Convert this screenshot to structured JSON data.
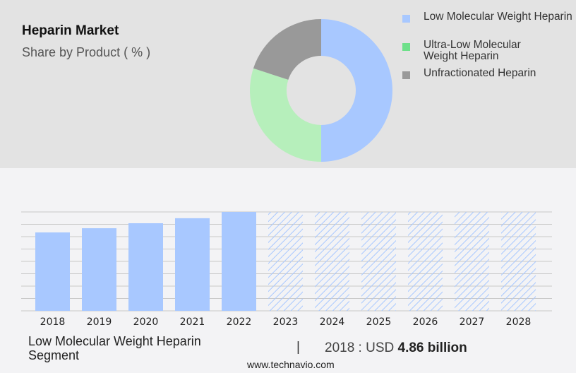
{
  "title": "Heparin Market",
  "subtitle": "Share by Product ( % )",
  "chart_data": [
    {
      "type": "pie",
      "donut": true,
      "categories": [
        "Low Molecular Weight Heparin",
        "Ultra-Low Molecular Weight Heparin",
        "Unfractionated Heparin"
      ],
      "values": [
        50,
        30,
        20
      ],
      "colors": [
        "#a8c8ff",
        "#b6efbb",
        "#999999"
      ],
      "legend_colors": [
        "#a8c8ff",
        "#6ee08a",
        "#999999"
      ],
      "legend": "right"
    },
    {
      "type": "bar",
      "categories": [
        "2018",
        "2019",
        "2020",
        "2021",
        "2022",
        "2023",
        "2024",
        "2025",
        "2026",
        "2027",
        "2028"
      ],
      "values": [
        4.86,
        5.12,
        5.43,
        5.74,
        6.13,
        null,
        null,
        null,
        null,
        null,
        null
      ],
      "forecast_from": "2023",
      "forecast_style": "hatched",
      "color": "#a8c8ff",
      "grid": true,
      "ylabel": "",
      "xlabel": ""
    }
  ],
  "footer": {
    "segment": "Low Molecular Weight Heparin Segment",
    "separator": "|",
    "value_prefix": "2018 : USD",
    "value": "4.86 billion",
    "url": "www.technavio.com"
  }
}
